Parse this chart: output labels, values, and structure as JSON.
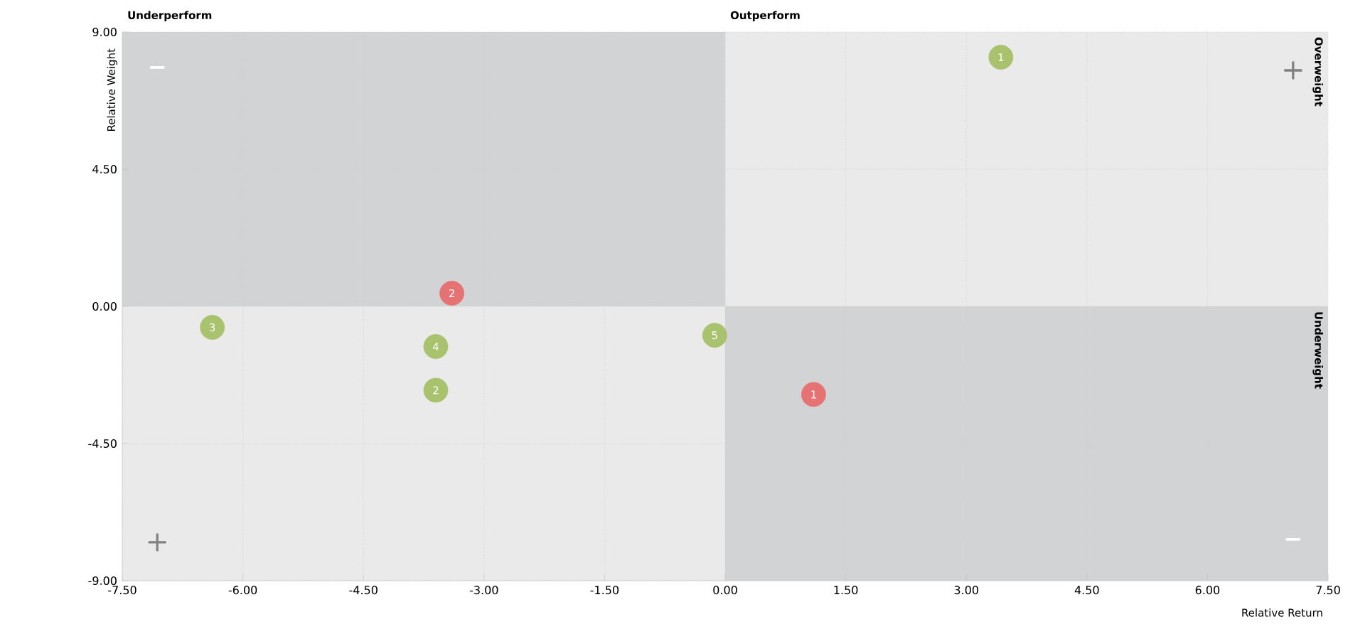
{
  "chart_data": {
    "type": "scatter",
    "xlabel": "Relative Return",
    "ylabel": "Relative Weight",
    "xlim": [
      -7.5,
      7.5
    ],
    "ylim": [
      -9,
      9
    ],
    "xticks": [
      {
        "value": -7.5,
        "label": "-7.50"
      },
      {
        "value": -6,
        "label": "-6.00"
      },
      {
        "value": -4.5,
        "label": "-4.50"
      },
      {
        "value": -3,
        "label": "-3.00"
      },
      {
        "value": -1.5,
        "label": "-1.50"
      },
      {
        "value": 0,
        "label": "0.00"
      },
      {
        "value": 1.5,
        "label": "1.50"
      },
      {
        "value": 3,
        "label": "3.00"
      },
      {
        "value": 4.5,
        "label": "4.50"
      },
      {
        "value": 6,
        "label": "6.00"
      },
      {
        "value": 7.5,
        "label": "7.50"
      }
    ],
    "yticks": [
      {
        "value": -9,
        "label": "-9.00"
      },
      {
        "value": -4.5,
        "label": "-4.50"
      },
      {
        "value": 0,
        "label": "0.00"
      },
      {
        "value": 4.5,
        "label": "4.50"
      },
      {
        "value": 9,
        "label": "9.00"
      }
    ],
    "grid": true,
    "marker": "circle",
    "series": [
      {
        "color": "#a9c26d",
        "x": [
          3.43,
          -6.38,
          -3.6,
          -3.6,
          -0.13
        ],
        "values": [
          8.17,
          -0.69,
          -1.32,
          -2.75,
          -0.95
        ]
      },
      {
        "color": "#e57373",
        "x": [
          -3.4,
          1.1
        ],
        "values": [
          0.43,
          -2.89
        ]
      }
    ],
    "annotations": [
      "Underperform",
      "Outperform",
      "Overweight",
      "Underweight",
      "−",
      "+",
      "+",
      "−",
      {
        "text": "1",
        "x": 3.43,
        "y": 8.17
      },
      {
        "text": "3",
        "x": -6.38,
        "y": -0.69
      },
      {
        "text": "4",
        "x": -3.6,
        "y": -1.32
      },
      {
        "text": "2",
        "x": -3.6,
        "y": -2.75
      },
      {
        "text": "5",
        "x": -0.13,
        "y": -0.95
      },
      {
        "text": "2",
        "x": -3.4,
        "y": 0.43
      },
      {
        "text": "1",
        "x": 1.1,
        "y": -2.89
      }
    ]
  }
}
